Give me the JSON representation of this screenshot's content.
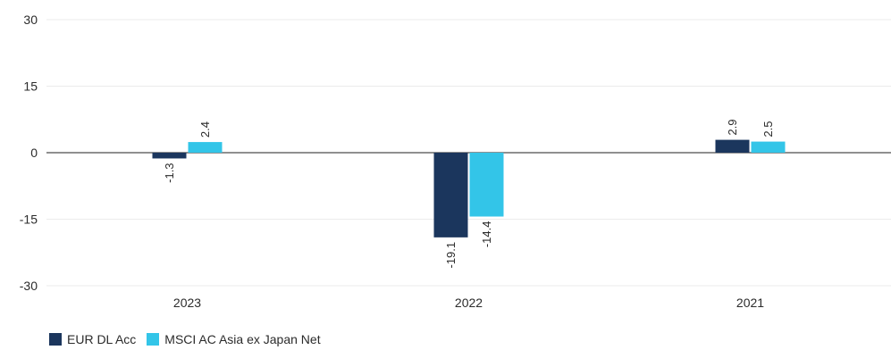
{
  "chart_data": {
    "type": "bar",
    "categories": [
      "2023",
      "2022",
      "2021"
    ],
    "series": [
      {
        "name": "EUR DL Acc",
        "values": [
          -1.3,
          -19.1,
          2.9
        ],
        "color": "#1b365d"
      },
      {
        "name": "MSCI AC Asia ex Japan Net",
        "values": [
          2.4,
          -14.4,
          2.5
        ],
        "color": "#33c5e8"
      }
    ],
    "yticks": [
      30,
      15,
      0,
      -15,
      -30
    ],
    "ylim": [
      -30,
      30
    ],
    "grid": true,
    "legend_position": "bottom-left"
  }
}
